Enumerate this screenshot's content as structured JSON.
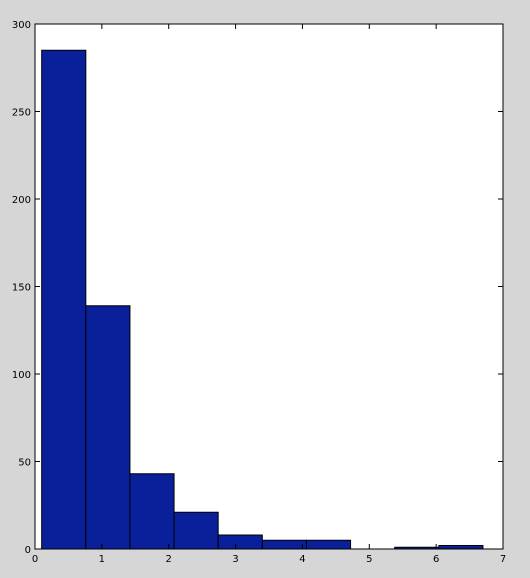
{
  "colors": {
    "figure_background": "#d6d6d6",
    "axes_background": "#ffffff",
    "bar_fill": "#0a1f9a",
    "bar_edge": "#000000",
    "axis": "#000000"
  },
  "chart_data": {
    "type": "bar",
    "subtype": "histogram",
    "title": "",
    "xlabel": "",
    "ylabel": "",
    "bin_edges": [
      0.1,
      0.76,
      1.42,
      2.08,
      2.74,
      3.4,
      4.06,
      4.72,
      5.38,
      6.04,
      6.7
    ],
    "values": [
      285,
      139,
      43,
      21,
      8,
      5,
      5,
      0,
      1,
      2
    ],
    "xlim": [
      0,
      7
    ],
    "ylim": [
      0,
      300
    ],
    "x_ticks": [
      0,
      1,
      2,
      3,
      4,
      5,
      6,
      7
    ],
    "y_ticks": [
      0,
      50,
      100,
      150,
      200,
      250,
      300
    ],
    "x_tick_labels": [
      "0",
      "1",
      "2",
      "3",
      "4",
      "5",
      "6",
      "7"
    ],
    "y_tick_labels": [
      "0",
      "50",
      "100",
      "150",
      "200",
      "250",
      "300"
    ],
    "grid": false,
    "legend": "none"
  }
}
